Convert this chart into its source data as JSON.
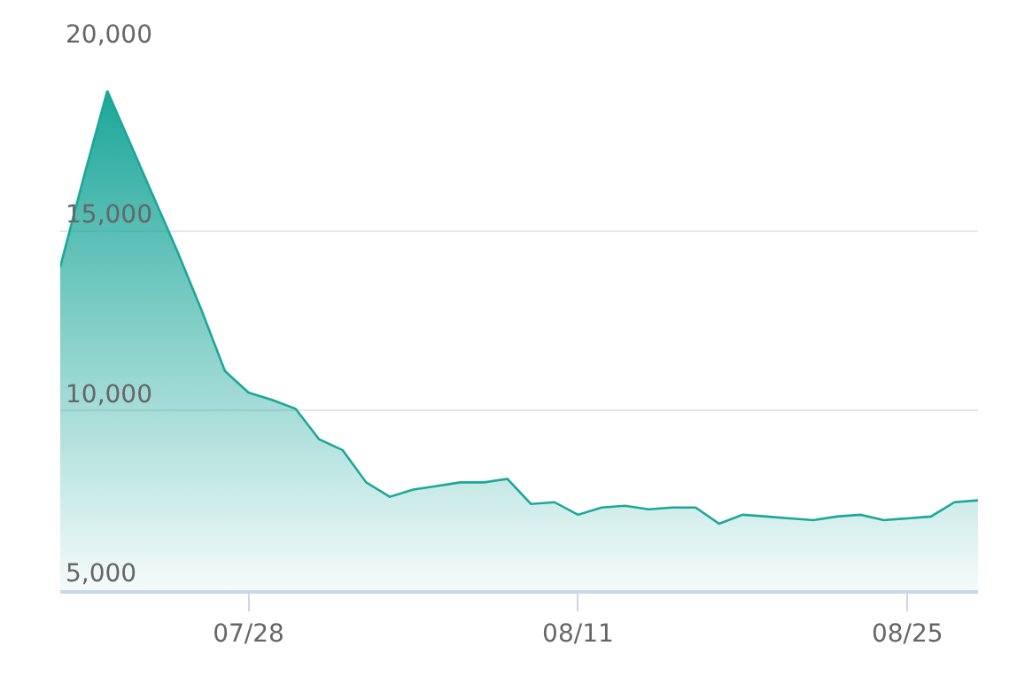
{
  "chart_data": {
    "type": "area",
    "x": [
      "--07-20",
      "--07-21",
      "--07-22",
      "--07-23",
      "--07-24",
      "--07-25",
      "--07-26",
      "--07-27",
      "--07-28",
      "--07-29",
      "--07-30",
      "--07-31",
      "--08-01",
      "--08-02",
      "--08-03",
      "--08-04",
      "--08-05",
      "--08-06",
      "--08-07",
      "--08-08",
      "--08-09",
      "--08-10",
      "--08-11",
      "--08-12",
      "--08-13",
      "--08-14",
      "--08-15",
      "--08-16",
      "--08-17",
      "--08-18",
      "--08-19",
      "--08-20",
      "--08-21",
      "--08-22",
      "--08-23",
      "--08-24",
      "--08-25",
      "--08-26",
      "--08-27",
      "--08-28"
    ],
    "series": [
      {
        "color": "#1ca79a",
        "values": [
          14000,
          16500,
          18900,
          17400,
          15900,
          14400,
          12800,
          11100,
          10500,
          10300,
          10050,
          9200,
          8900,
          8000,
          7600,
          7800,
          7900,
          8000,
          8000,
          8100,
          7400,
          7450,
          7100,
          7300,
          7350,
          7250,
          7300,
          7300,
          6850,
          7100,
          7050,
          7000,
          6950,
          7050,
          7100,
          6950,
          7000,
          7050,
          7450,
          7500
        ]
      }
    ],
    "xlim": [
      "--07-20",
      "--08-28"
    ],
    "xticks": [
      {
        "value": "--07-28",
        "label": "07/28"
      },
      {
        "value": "--08-11",
        "label": "08/11"
      },
      {
        "value": "--08-25",
        "label": "08/25"
      }
    ],
    "ylim": [
      5000,
      20000
    ],
    "yticks": [
      {
        "value": 5000,
        "label": "5,000"
      },
      {
        "value": 10000,
        "label": "10,000"
      },
      {
        "value": 15000,
        "label": "15,000"
      },
      {
        "value": 20000,
        "label": "20,000"
      }
    ],
    "grid": "y",
    "marker": "none"
  }
}
